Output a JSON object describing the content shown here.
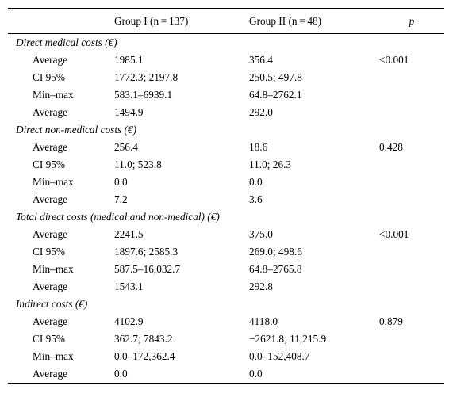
{
  "table": {
    "header": {
      "col1": "",
      "col2": "Group I (n = 137)",
      "col3": "Group II (n = 48)",
      "col4": "p"
    },
    "sections": [
      {
        "title": "Direct medical costs (€)",
        "rows": [
          {
            "label": "Average",
            "g1": "1985.1",
            "g2": "356.4",
            "p": "<0.001"
          },
          {
            "label": "CI 95%",
            "g1": "1772.3; 2197.8",
            "g2": "250.5; 497.8",
            "p": ""
          },
          {
            "label": "Min–max",
            "g1": "583.1–6939.1",
            "g2": "64.8–2762.1",
            "p": ""
          },
          {
            "label": "Average",
            "g1": "1494.9",
            "g2": "292.0",
            "p": ""
          }
        ]
      },
      {
        "title": "Direct non-medical costs (€)",
        "rows": [
          {
            "label": "Average",
            "g1": "256.4",
            "g2": "18.6",
            "p": "0.428"
          },
          {
            "label": "CI 95%",
            "g1": "11.0; 523.8",
            "g2": "11.0; 26.3",
            "p": ""
          },
          {
            "label": "Min–max",
            "g1": "0.0",
            "g2": "0.0",
            "p": ""
          },
          {
            "label": "Average",
            "g1": "7.2",
            "g2": "3.6",
            "p": ""
          }
        ]
      },
      {
        "title": "Total direct costs (medical and non-medical) (€)",
        "rows": [
          {
            "label": "Average",
            "g1": "2241.5",
            "g2": "375.0",
            "p": "<0.001"
          },
          {
            "label": "CI 95%",
            "g1": "1897.6; 2585.3",
            "g2": "269.0; 498.6",
            "p": ""
          },
          {
            "label": "Min–max",
            "g1": "587.5–16,032.7",
            "g2": "64.8–2765.8",
            "p": ""
          },
          {
            "label": "Average",
            "g1": "1543.1",
            "g2": "292.8",
            "p": ""
          }
        ]
      },
      {
        "title": "Indirect costs (€)",
        "rows": [
          {
            "label": "Average",
            "g1": "4102.9",
            "g2": "4118.0",
            "p": "0.879"
          },
          {
            "label": "CI 95%",
            "g1": "362.7; 7843.2",
            "g2": "−2621.8; 11,215.9",
            "p": ""
          },
          {
            "label": "Min–max",
            "g1": "0.0–172,362.4",
            "g2": "0.0–152,408.7",
            "p": ""
          },
          {
            "label": "Average",
            "g1": "0.0",
            "g2": "0.0",
            "p": ""
          }
        ]
      }
    ]
  }
}
